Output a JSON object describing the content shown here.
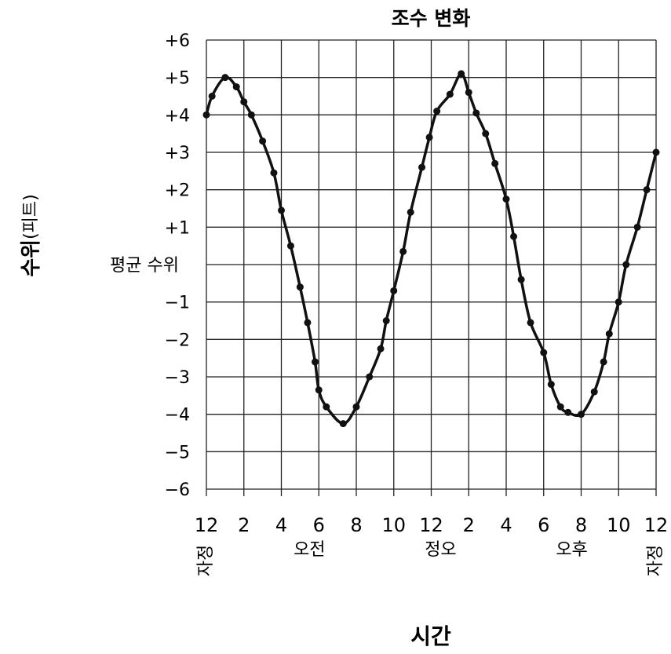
{
  "chart_data": {
    "type": "line",
    "title": "조수 변화",
    "ylabel_main": "수위",
    "ylabel_unit": "(피트)",
    "xlabel": "시간",
    "mean_label": "평균 수위",
    "ylim": [
      -6,
      6
    ],
    "y_ticks": [
      "+6",
      "+5",
      "+4",
      "+3",
      "+2",
      "+1",
      "",
      "−1",
      "−2",
      "−3",
      "−4",
      "−5",
      "−6"
    ],
    "x_ticks": [
      "12",
      "2",
      "4",
      "6",
      "8",
      "10",
      "12",
      "2",
      "4",
      "6",
      "8",
      "10",
      "12"
    ],
    "x_hours": [
      0,
      2,
      4,
      6,
      8,
      10,
      12,
      14,
      16,
      18,
      20,
      22,
      24
    ],
    "period_labels": [
      {
        "text": "자정",
        "vertical": true,
        "hour": 0
      },
      {
        "text": "오전",
        "vertical": false,
        "hour": 5.5
      },
      {
        "text": "정오",
        "vertical": false,
        "hour": 12.5
      },
      {
        "text": "오후",
        "vertical": false,
        "hour": 19.5
      },
      {
        "text": "자정",
        "vertical": true,
        "hour": 24
      }
    ],
    "grid": true,
    "series": [
      {
        "x": [
          0,
          0.3,
          1.0,
          1.6,
          2.0,
          2.4,
          3.0,
          3.6,
          4.0,
          4.5,
          5.0,
          5.4,
          5.8,
          6.0,
          6.4,
          7.3,
          8.0,
          8.7,
          9.3,
          9.6,
          10.0,
          10.5,
          10.9,
          11.5,
          11.9,
          12.3,
          13.0,
          13.6,
          14.0,
          14.4,
          14.9,
          15.4,
          16.0,
          16.4,
          16.8,
          17.3,
          18.0,
          18.4,
          18.9,
          19.3,
          20.0,
          20.7,
          21.2,
          21.5,
          22.0,
          22.4,
          23.0,
          23.5,
          24.0
        ],
        "y": [
          4.0,
          4.5,
          5.0,
          4.75,
          4.35,
          4.0,
          3.3,
          2.45,
          1.45,
          0.5,
          -0.6,
          -1.55,
          -2.6,
          -3.35,
          -3.8,
          -4.25,
          -3.8,
          -3.0,
          -2.25,
          -1.5,
          -0.7,
          0.35,
          1.4,
          2.6,
          3.4,
          4.1,
          4.55,
          5.1,
          4.6,
          4.05,
          3.5,
          2.7,
          1.75,
          0.75,
          -0.4,
          -1.55,
          -2.35,
          -3.2,
          -3.8,
          -3.95,
          -4.0,
          -3.4,
          -2.6,
          -1.85,
          -1.0,
          0.0,
          1.0,
          2.0,
          3.0
        ]
      }
    ]
  }
}
